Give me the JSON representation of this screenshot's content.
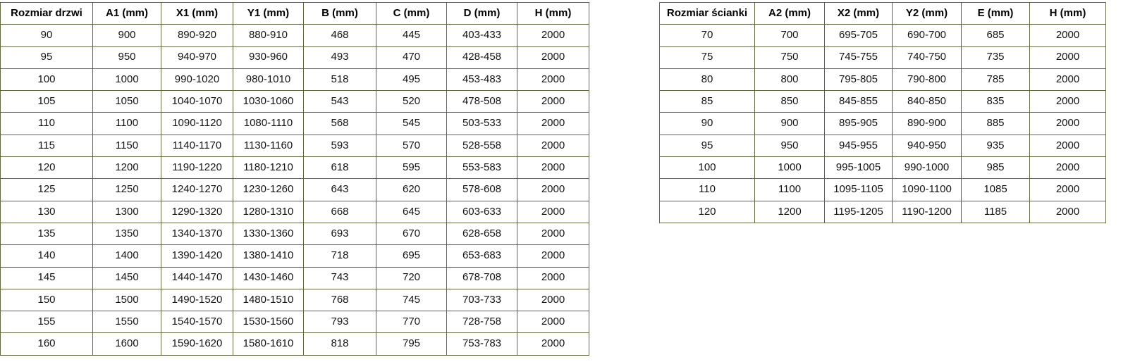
{
  "colors": {
    "background": "#ffffff",
    "border": "#63663f",
    "text": "#141414"
  },
  "chart_data": [
    {
      "type": "table",
      "title": "Rozmiar drzwi (door size dimensions table)",
      "headers": [
        "Rozmiar drzwi",
        "A1 (mm)",
        "X1 (mm)",
        "Y1 (mm)",
        "B (mm)",
        "C (mm)",
        "D (mm)",
        "H (mm)"
      ],
      "rows": [
        [
          "90",
          "900",
          "890-920",
          "880-910",
          "468",
          "445",
          "403-433",
          "2000"
        ],
        [
          "95",
          "950",
          "940-970",
          "930-960",
          "493",
          "470",
          "428-458",
          "2000"
        ],
        [
          "100",
          "1000",
          "990-1020",
          "980-1010",
          "518",
          "495",
          "453-483",
          "2000"
        ],
        [
          "105",
          "1050",
          "1040-1070",
          "1030-1060",
          "543",
          "520",
          "478-508",
          "2000"
        ],
        [
          "110",
          "1100",
          "1090-1120",
          "1080-1110",
          "568",
          "545",
          "503-533",
          "2000"
        ],
        [
          "115",
          "1150",
          "1140-1170",
          "1130-1160",
          "593",
          "570",
          "528-558",
          "2000"
        ],
        [
          "120",
          "1200",
          "1190-1220",
          "1180-1210",
          "618",
          "595",
          "553-583",
          "2000"
        ],
        [
          "125",
          "1250",
          "1240-1270",
          "1230-1260",
          "643",
          "620",
          "578-608",
          "2000"
        ],
        [
          "130",
          "1300",
          "1290-1320",
          "1280-1310",
          "668",
          "645",
          "603-633",
          "2000"
        ],
        [
          "135",
          "1350",
          "1340-1370",
          "1330-1360",
          "693",
          "670",
          "628-658",
          "2000"
        ],
        [
          "140",
          "1400",
          "1390-1420",
          "1380-1410",
          "718",
          "695",
          "653-683",
          "2000"
        ],
        [
          "145",
          "1450",
          "1440-1470",
          "1430-1460",
          "743",
          "720",
          "678-708",
          "2000"
        ],
        [
          "150",
          "1500",
          "1490-1520",
          "1480-1510",
          "768",
          "745",
          "703-733",
          "2000"
        ],
        [
          "155",
          "1550",
          "1540-1570",
          "1530-1560",
          "793",
          "770",
          "728-758",
          "2000"
        ],
        [
          "160",
          "1600",
          "1590-1620",
          "1580-1610",
          "818",
          "795",
          "753-783",
          "2000"
        ]
      ]
    },
    {
      "type": "table",
      "title": "Rozmiar ścianki (wall panel size dimensions table)",
      "headers": [
        "Rozmiar ścianki",
        "A2 (mm)",
        "X2 (mm)",
        "Y2 (mm)",
        "E (mm)",
        "H (mm)"
      ],
      "rows": [
        [
          "70",
          "700",
          "695-705",
          "690-700",
          "685",
          "2000"
        ],
        [
          "75",
          "750",
          "745-755",
          "740-750",
          "735",
          "2000"
        ],
        [
          "80",
          "800",
          "795-805",
          "790-800",
          "785",
          "2000"
        ],
        [
          "85",
          "850",
          "845-855",
          "840-850",
          "835",
          "2000"
        ],
        [
          "90",
          "900",
          "895-905",
          "890-900",
          "885",
          "2000"
        ],
        [
          "95",
          "950",
          "945-955",
          "940-950",
          "935",
          "2000"
        ],
        [
          "100",
          "1000",
          "995-1005",
          "990-1000",
          "985",
          "2000"
        ],
        [
          "110",
          "1100",
          "1095-1105",
          "1090-1100",
          "1085",
          "2000"
        ],
        [
          "120",
          "1200",
          "1195-1205",
          "1190-1200",
          "1185",
          "2000"
        ]
      ]
    }
  ]
}
